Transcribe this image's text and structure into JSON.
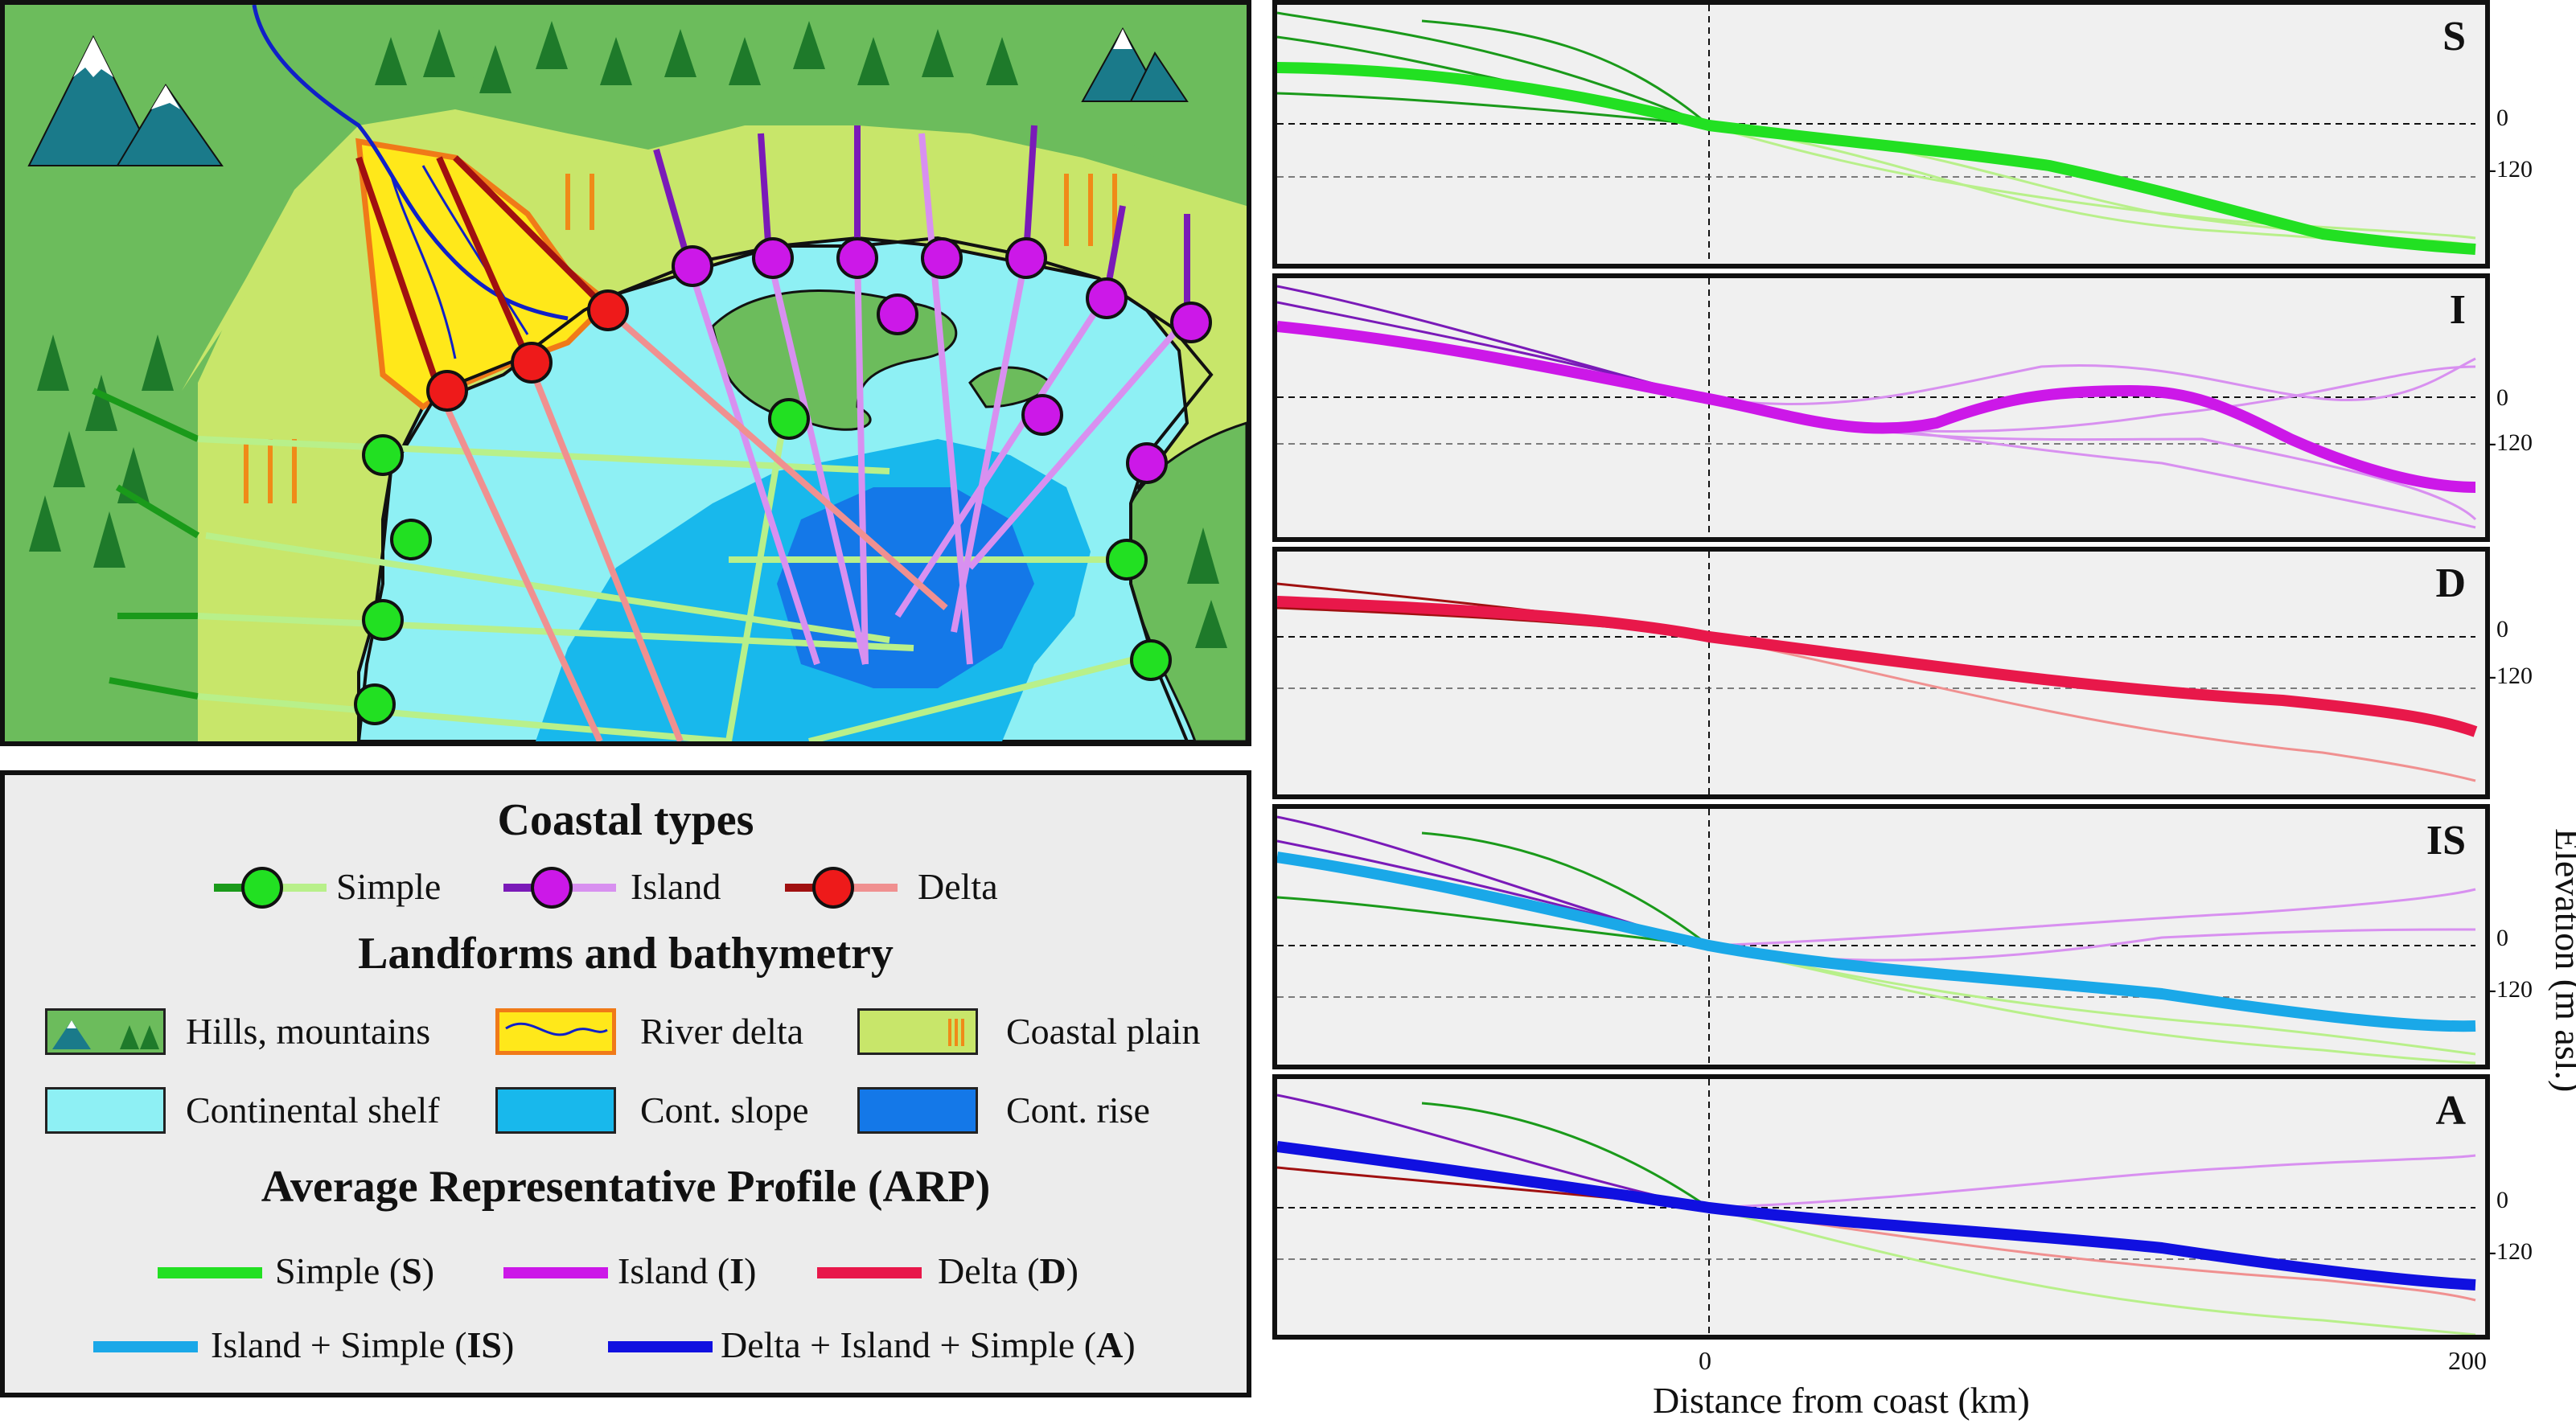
{
  "legend": {
    "coastal_types_title": "Coastal types",
    "simple": "Simple",
    "island": "Island",
    "delta": "Delta",
    "landforms_title": "Landforms and bathymetry",
    "hills": "Hills, mountains",
    "river_delta": "River delta",
    "coastal_plain": "Coastal plain",
    "continental_shelf": "Continental shelf",
    "cont_slope": "Cont. slope",
    "cont_rise": "Cont. rise",
    "arp_title": "Average Representative Profile (ARP)",
    "arp_simple": "Simple (",
    "arp_simple_code": "S",
    "arp_island": "Island (",
    "arp_island_code": "I",
    "arp_delta": "Delta (",
    "arp_delta_code": "D",
    "arp_is": "Island + Simple (",
    "arp_is_code": "IS",
    "arp_a": "Delta + Island + Simple (",
    "arp_a_code": "A",
    "close_paren": ")"
  },
  "profiles": {
    "zero_label": "0",
    "neg_label": "-120",
    "panels": [
      {
        "code": "S"
      },
      {
        "code": "I"
      },
      {
        "code": "D"
      },
      {
        "code": "IS"
      },
      {
        "code": "A"
      }
    ]
  },
  "axes": {
    "x_title": "Distance from coast (km)",
    "y_title": "Elevation (m asl.)",
    "x_tick_0": "0",
    "x_tick_200": "200"
  },
  "colors": {
    "simple_dark": "#1a9a1a",
    "simple_light": "#b8f08a",
    "simple_arp": "#22e022",
    "island_dark": "#7a1ab8",
    "island_light": "#d890f0",
    "island_arp": "#cc18e8",
    "delta_dark": "#a01010",
    "delta_light": "#f09090",
    "delta_arp": "#e8184a",
    "is_arp": "#1aa8e8",
    "a_arp": "#1010e0",
    "shelf": "#8ef0f4",
    "slope": "#18b8ec",
    "rise": "#1478e8",
    "plain": "#c8e66a",
    "forest_bg": "#6cbc5c",
    "delta_fill": "#ffe81a"
  }
}
